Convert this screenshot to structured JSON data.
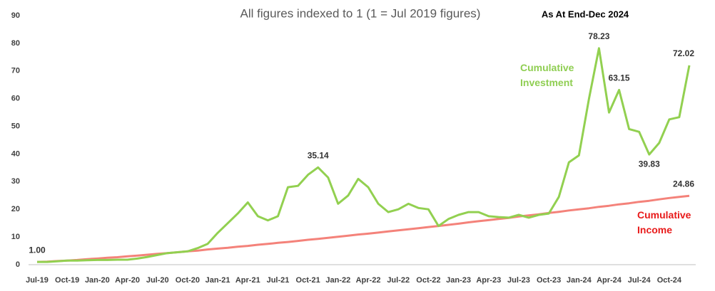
{
  "chart_data": {
    "type": "line",
    "title": "All figures indexed to 1 (1 = Jul 2019 figures)",
    "subtitle": "As At End-Dec 2024",
    "categories": [
      "Jul-19",
      null,
      null,
      "Oct-19",
      null,
      null,
      "Jan-20",
      null,
      null,
      "Apr-20",
      null,
      null,
      "Jul-20",
      null,
      null,
      "Oct-20",
      null,
      null,
      "Jan-21",
      null,
      null,
      "Apr-21",
      null,
      null,
      "Jul-21",
      null,
      null,
      "Oct-21",
      null,
      null,
      "Jan-22",
      null,
      null,
      "Apr-22",
      null,
      null,
      "Jul-22",
      null,
      null,
      "Oct-22",
      null,
      null,
      "Jan-23",
      null,
      null,
      "Apr-23",
      null,
      null,
      "Jul-23",
      null,
      null,
      "Oct-23",
      null,
      null,
      "Jan-24",
      null,
      null,
      "Apr-24",
      null,
      null,
      "Jul-24",
      null,
      null,
      "Oct-24",
      null,
      null
    ],
    "series": [
      {
        "name": "Cumulative Investment",
        "color": "#92d050",
        "values": [
          1.0,
          1.0,
          1.2,
          1.5,
          1.5,
          1.6,
          1.7,
          1.7,
          1.8,
          1.8,
          2.2,
          2.8,
          3.5,
          4.2,
          4.5,
          4.8,
          6,
          7.5,
          11.5,
          15,
          18.5,
          22.5,
          17.5,
          16,
          17.5,
          28,
          28.5,
          32.5,
          35.14,
          31.5,
          22,
          25,
          31,
          28,
          22,
          19,
          20,
          22,
          20.5,
          20,
          14,
          16.5,
          18,
          19,
          19,
          17.5,
          17.2,
          17,
          18,
          17,
          18,
          18.5,
          24.5,
          37,
          39.5,
          60,
          78.23,
          55,
          63.15,
          49,
          48,
          39.83,
          44,
          52.5,
          53.3,
          72.02
        ],
        "value_labels": [
          "1.00",
          null,
          null,
          null,
          null,
          null,
          null,
          null,
          null,
          null,
          null,
          null,
          null,
          null,
          null,
          null,
          null,
          null,
          null,
          null,
          null,
          null,
          null,
          null,
          null,
          null,
          null,
          null,
          "35.14",
          null,
          null,
          null,
          null,
          null,
          null,
          null,
          null,
          null,
          null,
          null,
          null,
          null,
          null,
          null,
          null,
          null,
          null,
          null,
          null,
          null,
          null,
          null,
          null,
          null,
          null,
          null,
          "78.23",
          null,
          "63.15",
          null,
          null,
          "39.83",
          null,
          null,
          null,
          "72.02"
        ]
      },
      {
        "name": "Cumulative Income",
        "color": "#f4827a",
        "values": [
          1.0,
          1.1,
          1.3,
          1.5,
          1.7,
          2.0,
          2.2,
          2.5,
          2.7,
          3.0,
          3.3,
          3.6,
          3.9,
          4.2,
          4.5,
          4.8,
          5.1,
          5.5,
          5.8,
          6.1,
          6.5,
          6.8,
          7.2,
          7.5,
          7.9,
          8.2,
          8.6,
          9.0,
          9.3,
          9.7,
          10.1,
          10.5,
          10.9,
          11.2,
          11.6,
          12.0,
          12.4,
          12.8,
          13.2,
          13.6,
          14.0,
          14.4,
          14.8,
          15.3,
          15.7,
          16.1,
          16.5,
          16.9,
          17.4,
          17.8,
          18.2,
          18.7,
          19.1,
          19.6,
          20.0,
          20.4,
          20.9,
          21.3,
          21.8,
          22.2,
          22.7,
          23.1,
          23.6,
          24.1,
          24.5,
          24.86
        ],
        "value_labels": [
          null,
          null,
          null,
          null,
          null,
          null,
          null,
          null,
          null,
          null,
          null,
          null,
          null,
          null,
          null,
          null,
          null,
          null,
          null,
          null,
          null,
          null,
          null,
          null,
          null,
          null,
          null,
          null,
          null,
          null,
          null,
          null,
          null,
          null,
          null,
          null,
          null,
          null,
          null,
          null,
          null,
          null,
          null,
          null,
          null,
          null,
          null,
          null,
          null,
          null,
          null,
          null,
          null,
          null,
          null,
          null,
          null,
          null,
          null,
          null,
          null,
          null,
          null,
          null,
          null,
          "24.86"
        ]
      }
    ],
    "ylim": [
      0,
      90
    ],
    "yticks": [
      0,
      10,
      20,
      30,
      40,
      50,
      60,
      70,
      80,
      90
    ],
    "grid": false
  }
}
